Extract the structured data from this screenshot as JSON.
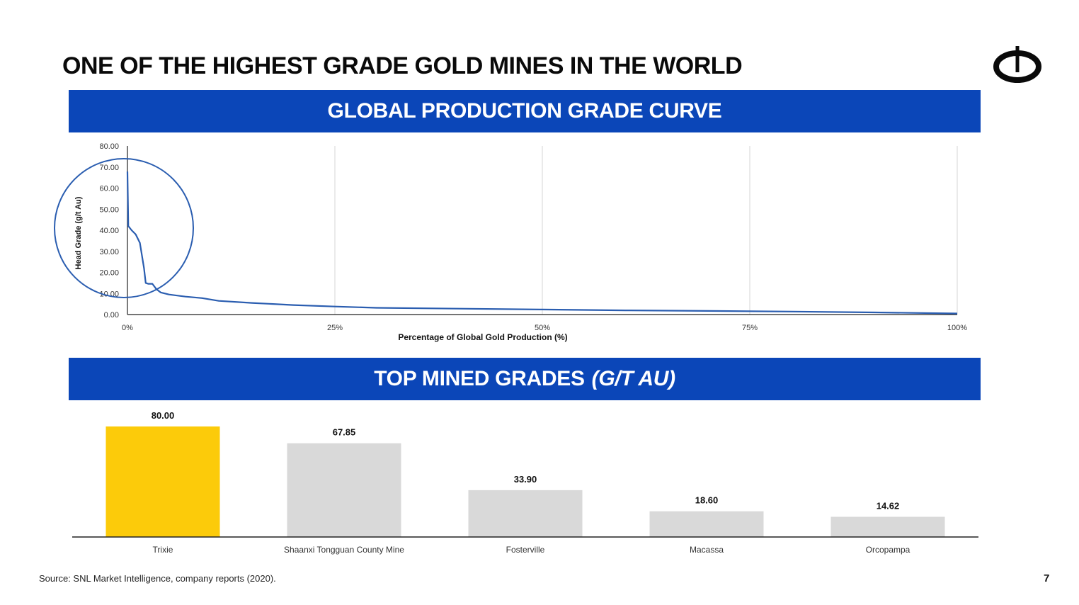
{
  "slide": {
    "title": "ONE OF THE HIGHEST GRADE GOLD MINES IN THE WORLD",
    "page_number": "7",
    "source": "Source: SNL Market Intelligence, company reports (2020).",
    "logo_icon": "power-ring-logo-icon"
  },
  "banners": {
    "curve_title": "GLOBAL PRODUCTION GRADE CURVE",
    "bars_title": "TOP MINED GRADES",
    "bars_unit": "(G/T AU)"
  },
  "colors": {
    "banner_blue": "#0b46b8",
    "curve_line": "#2a5db0",
    "highlight_bar": "#fccb0a",
    "other_bar": "#d9d9d9"
  },
  "chart_data": [
    {
      "type": "line",
      "title": "GLOBAL PRODUCTION GRADE CURVE",
      "xlabel": "Percentage of Global Gold Production (%)",
      "ylabel": "Head Grade (g/t Au)",
      "xlim": [
        0,
        100
      ],
      "ylim": [
        0,
        80
      ],
      "x_ticks": [
        "0%",
        "25%",
        "50%",
        "75%",
        "100%"
      ],
      "x_tick_values": [
        0,
        25,
        50,
        75,
        100
      ],
      "y_ticks": [
        "0.00",
        "10.00",
        "20.00",
        "30.00",
        "40.00",
        "50.00",
        "60.00",
        "70.00",
        "80.00"
      ],
      "y_tick_values": [
        0,
        10,
        20,
        30,
        40,
        50,
        60,
        70,
        80
      ],
      "grid": "vertical",
      "highlight": "circle around the 0%–5% region",
      "series": [
        {
          "x": [
            0,
            0.05,
            0.1,
            0.5,
            1.0,
            1.5,
            2.0,
            2.2,
            2.5,
            3.0,
            3.5,
            4.0,
            5,
            7,
            9,
            11,
            15,
            20,
            25,
            30,
            40,
            50,
            60,
            70,
            80,
            90,
            100
          ],
          "y": [
            67.85,
            55,
            42,
            40,
            38,
            34,
            22,
            15,
            14.6,
            14.6,
            12,
            10.5,
            9.5,
            8.5,
            7.8,
            6.5,
            5.5,
            4.5,
            3.8,
            3.2,
            2.8,
            2.4,
            2.0,
            1.7,
            1.4,
            1.0,
            0.5
          ]
        }
      ]
    },
    {
      "type": "bar",
      "title": "TOP MINED GRADES (G/T AU)",
      "categories": [
        "Trixie",
        "Shaanxi Tongguan County Mine",
        "Fosterville",
        "Macassa",
        "Orcopampa"
      ],
      "values": [
        80.0,
        67.85,
        33.9,
        18.6,
        14.62
      ],
      "value_labels": [
        "80.00",
        "67.85",
        "33.90",
        "18.60",
        "14.62"
      ],
      "highlight_category": "Trixie",
      "ylim": [
        0,
        80
      ]
    }
  ]
}
